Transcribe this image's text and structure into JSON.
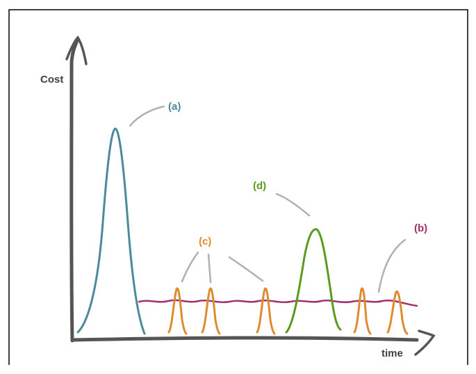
{
  "labels": {
    "y_axis": "Cost",
    "x_axis": "time",
    "a": "(a)",
    "b": "(b)",
    "c": "(c)",
    "d": "(d)"
  },
  "colors": {
    "frame": "#000000",
    "axis": "#555555",
    "axis_text": "#404040",
    "leader": "#b0b0b0",
    "a": "#4a8a9a",
    "b": "#a0306a",
    "c": "#e08a2e",
    "d": "#5a9a1e"
  }
}
